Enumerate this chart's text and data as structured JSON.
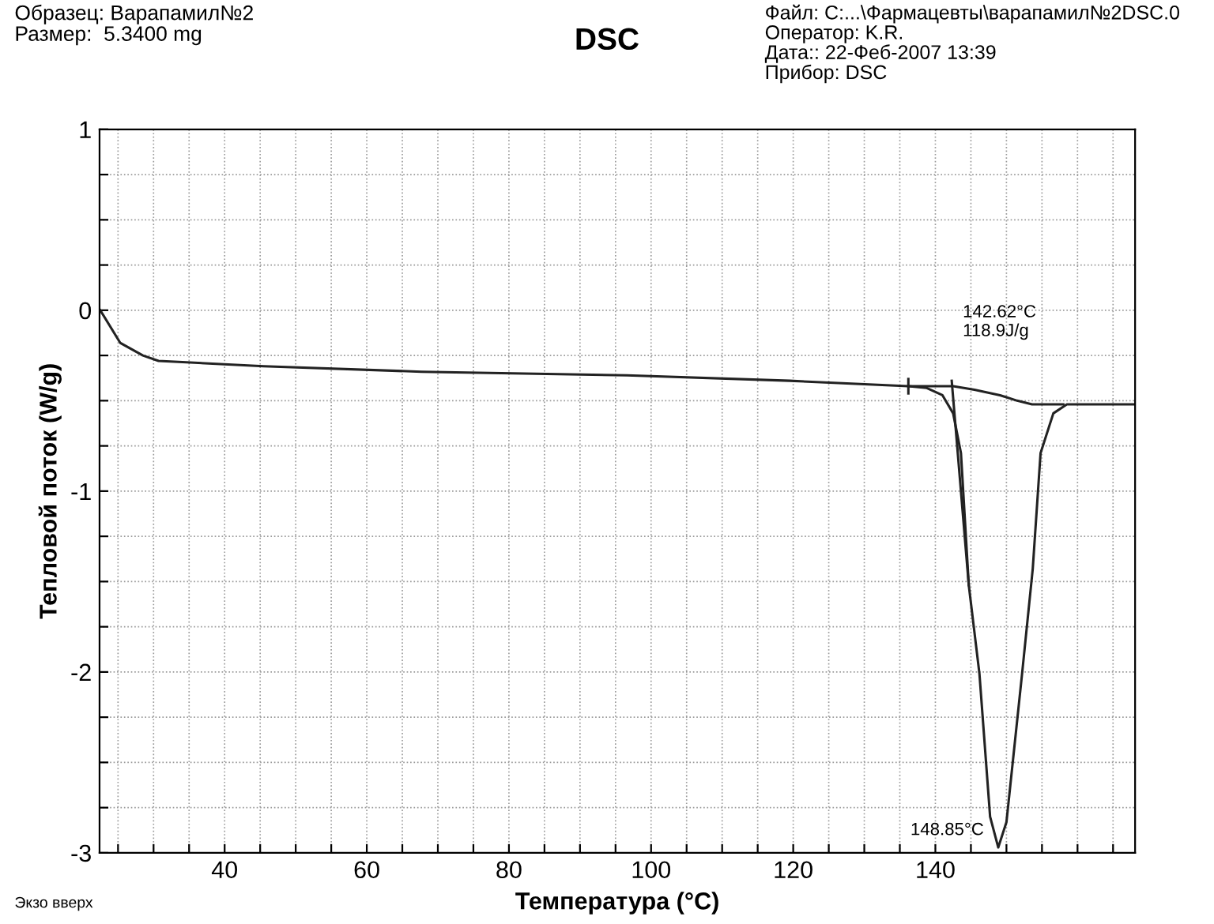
{
  "chart_data": {
    "type": "line",
    "title": "DSC",
    "xlabel": "Температура (°C)",
    "ylabel": "Тепловой поток (W/g)",
    "annotations": [
      "Образец: Варапамил№2\nРазмер:  5.3400 mg",
      "Файл: C:...\\Фармацевты\\варапамил№2DSC.0\nОператор: K.R.\nДата:: 22-Фeб-2007 13:39\nПрибор: DSC",
      "Экзо вверх",
      {
        "text": "142.62°C\n118.9J/g",
        "x": 142.62,
        "y": -0.43
      },
      {
        "text": "148.85°C",
        "x": 148.85,
        "y": -2.97
      }
    ],
    "series": [
      {
        "color": "#222222",
        "x": [
          22.5,
          25.3,
          28.5,
          30.7,
          45.5,
          67.7,
          96.6,
          119.5,
          136.2,
          138.8,
          141,
          142.5,
          143.6,
          144.7,
          146.2,
          147.7,
          148.85,
          150,
          152.2,
          153.7,
          154.8,
          156.6,
          158.5,
          168.1
        ],
        "values": [
          0,
          -0.18,
          -0.25,
          -0.28,
          -0.31,
          -0.34,
          -0.36,
          -0.39,
          -0.42,
          -0.43,
          -0.47,
          -0.57,
          -0.79,
          -1.52,
          -2.01,
          -2.8,
          -2.97,
          -2.83,
          -2.01,
          -1.43,
          -0.79,
          -0.57,
          -0.52,
          -0.52
        ]
      },
      {
        "color": "#222222",
        "x": [
          136.2,
          142.5,
          145.5,
          149.1,
          151.5,
          153.6,
          158
        ],
        "values": [
          -0.42,
          -0.42,
          -0.44,
          -0.47,
          -0.5,
          -0.52,
          -0.52
        ]
      },
      {
        "color": "#222222",
        "x": [
          142.3,
          144.7
        ],
        "values": [
          -0.39,
          -1.52
        ]
      },
      {
        "color": "#222222",
        "x": [
          136.2,
          136.2
        ],
        "values": [
          -0.38,
          -0.46
        ]
      }
    ],
    "xlim": [
      22.4,
      168.1
    ],
    "ylim": [
      -3,
      1
    ],
    "xticks": [
      {
        "value": 25,
        "label": null
      },
      {
        "value": 30,
        "label": null
      },
      {
        "value": 35,
        "label": null
      },
      40,
      {
        "value": 45,
        "label": null
      },
      {
        "value": 50,
        "label": null
      },
      {
        "value": 55,
        "label": null
      },
      60,
      {
        "value": 65,
        "label": null
      },
      {
        "value": 70,
        "label": null
      },
      {
        "value": 75,
        "label": null
      },
      80,
      {
        "value": 85,
        "label": null
      },
      {
        "value": 90,
        "label": null
      },
      {
        "value": 95,
        "label": null
      },
      100,
      {
        "value": 105,
        "label": null
      },
      {
        "value": 110,
        "label": null
      },
      {
        "value": 115,
        "label": null
      },
      120,
      {
        "value": 125,
        "label": null
      },
      {
        "value": 130,
        "label": null
      },
      {
        "value": 135,
        "label": null
      },
      140,
      {
        "value": 145,
        "label": null
      },
      {
        "value": 150,
        "label": null
      },
      {
        "value": 155,
        "label": null
      },
      {
        "value": 160,
        "label": null
      },
      {
        "value": 165,
        "label": null
      }
    ],
    "yticks": [
      -3,
      {
        "value": -2.75,
        "label": null
      },
      {
        "value": -2.5,
        "label": null
      },
      {
        "value": -2.25,
        "label": null
      },
      -2,
      {
        "value": -1.75,
        "label": null
      },
      {
        "value": -1.5,
        "label": null
      },
      {
        "value": -1.25,
        "label": null
      },
      -1,
      {
        "value": -0.75,
        "label": null
      },
      {
        "value": -0.5,
        "label": null
      },
      {
        "value": -0.25,
        "label": null
      },
      0,
      {
        "value": 0.25,
        "label": null
      },
      {
        "value": 0.5,
        "label": null
      },
      {
        "value": 0.75,
        "label": null
      },
      1
    ],
    "grid": true,
    "legend": false
  }
}
